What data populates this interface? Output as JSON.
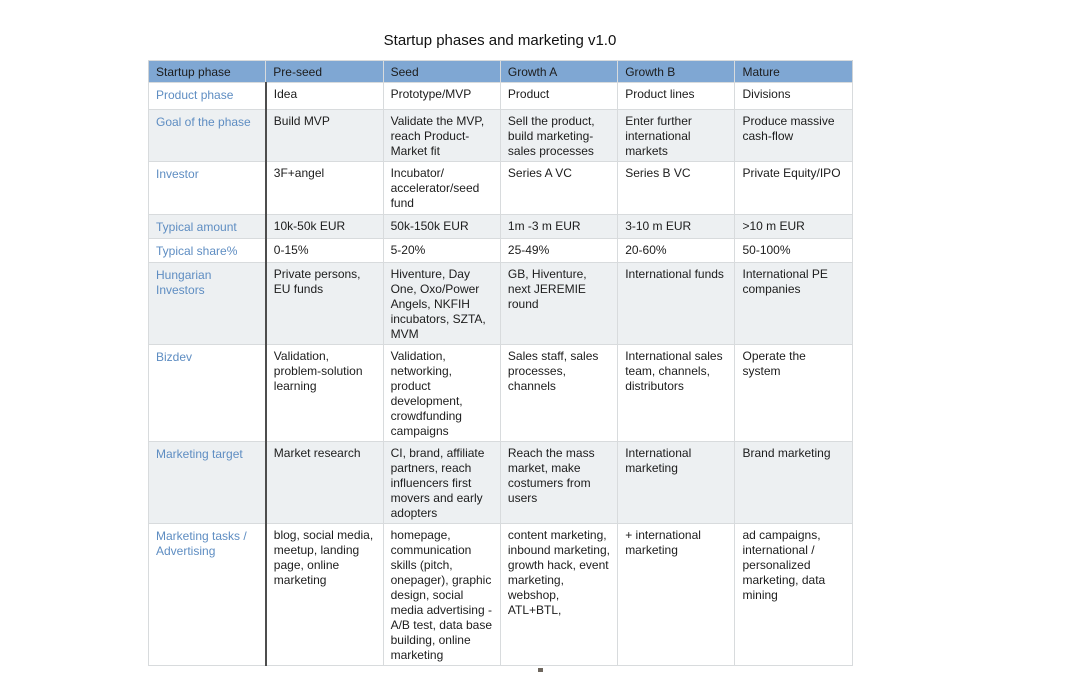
{
  "title": "Startup phases and marketing v1.0",
  "colors": {
    "header_fill": "#7fa7d3",
    "header_top_border": "#5585be",
    "header_text": "#ffffff",
    "row_label_text": "#5e8dc2",
    "stripe_fill": "#edf0f2",
    "label_divider": "#4d4d4d",
    "grid_line": "#d8dbdd",
    "body_text": "#1c1c1c"
  },
  "table": {
    "columns": [
      "Startup phase",
      "Pre-seed",
      "Seed",
      "Growth A",
      "Growth B",
      "Mature"
    ],
    "rows": [
      {
        "label": "Product phase",
        "cells": [
          "Idea",
          "Prototype/MVP",
          "Product",
          "Product lines",
          "Divisions"
        ]
      },
      {
        "label": "Goal of the phase",
        "cells": [
          "Build MVP",
          "Validate the MVP, reach Product-Market fit",
          "Sell the product, build marketing-sales processes",
          "Enter further international markets",
          "Produce massive cash-flow"
        ]
      },
      {
        "label": "Investor",
        "cells": [
          "3F+angel",
          "Incubator/ accelerator/seed fund",
          "Series A VC",
          "Series B VC",
          "Private Equity/IPO"
        ]
      },
      {
        "label": "Typical amount",
        "cells": [
          "10k-50k EUR",
          "50k-150k EUR",
          "1m -3 m EUR",
          "3-10 m EUR",
          ">10 m EUR"
        ]
      },
      {
        "label": "Typical share%",
        "cells": [
          "0-15%",
          "5-20%",
          "25-49%",
          "20-60%",
          "50-100%"
        ]
      },
      {
        "label": "Hungarian Investors",
        "cells": [
          "Private persons, EU funds",
          "Hiventure, Day One, Oxo/Power Angels, NKFIH incubators, SZTA, MVM",
          "GB, Hiventure, next JEREMIE round",
          "International funds",
          "International PE companies"
        ]
      },
      {
        "label": "Bizdev",
        "cells": [
          "Validation, problem-solution learning",
          "Validation, networking, product development, crowdfunding campaigns",
          "Sales staff, sales processes, channels",
          "International sales team, channels, distributors",
          "Operate the system"
        ]
      },
      {
        "label": "Marketing target",
        "cells": [
          "Market research",
          "CI, brand, affiliate partners, reach influencers first movers and early adopters",
          "Reach the mass market, make costumers from users",
          "International marketing",
          "Brand marketing"
        ]
      },
      {
        "label": "Marketing tasks / Advertising",
        "cells": [
          "blog, social media, meetup, landing page, online marketing",
          "homepage, communication skills (pitch, onepager), graphic design, social media advertising - A/B test, data base building, online marketing",
          "content marketing, inbound marketing, growth hack, event marketing, webshop, ATL+BTL,",
          "+ international marketing",
          "ad campaigns, international / personalized marketing, data mining"
        ]
      }
    ]
  }
}
